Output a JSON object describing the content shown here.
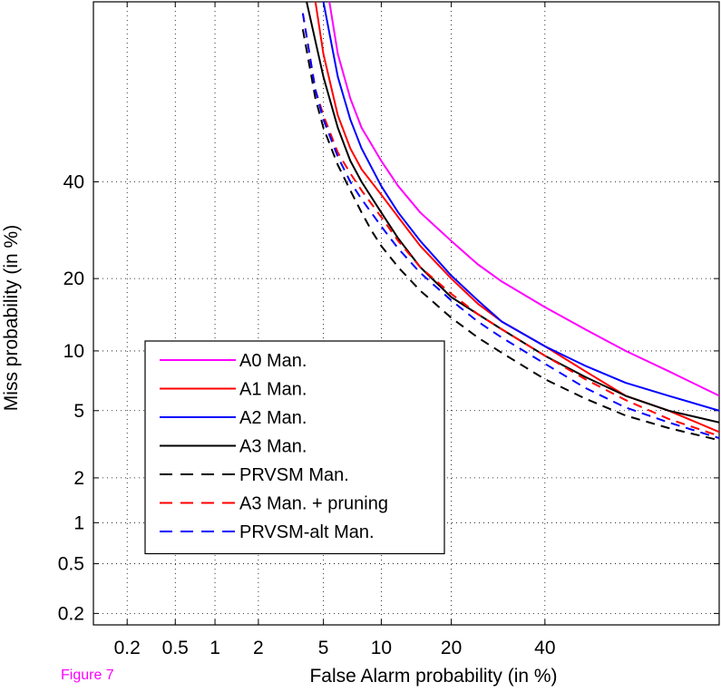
{
  "caption": "Figure 7",
  "chart_data": {
    "type": "line",
    "title": "",
    "xlabel": "False Alarm probability (in %)",
    "ylabel": "Miss probability (in %)",
    "scale": "normal-deviate (DET)",
    "xlim": [
      0.1,
      80
    ],
    "ylim": [
      0.16,
      80
    ],
    "xticks": [
      0.2,
      0.5,
      1,
      2,
      5,
      10,
      20,
      40
    ],
    "xtick_labels": [
      "0.2",
      "0.5",
      "1",
      "2",
      "5",
      "10",
      "20",
      "40"
    ],
    "yticks": [
      0.2,
      0.5,
      1,
      2,
      5,
      10,
      20,
      40
    ],
    "ytick_labels": [
      "0.2",
      "0.5",
      "1",
      "2",
      "5",
      "10",
      "20",
      "40"
    ],
    "grid": true,
    "legend_position": "lower-left",
    "series": [
      {
        "name": "A0 Man.",
        "color": "#ff00ff",
        "dash": "solid",
        "x": [
          5.4,
          6,
          7,
          8,
          10,
          12,
          15,
          20,
          25,
          30,
          40,
          50,
          60,
          70,
          80
        ],
        "y": [
          80,
          70,
          60,
          53,
          45,
          39,
          33,
          27,
          22.5,
          19.5,
          15.5,
          12.5,
          10,
          8,
          6
        ]
      },
      {
        "name": "A1 Man.",
        "color": "#ff0000",
        "dash": "solid",
        "x": [
          4.5,
          5,
          6,
          7,
          8,
          10,
          12,
          15,
          20,
          25,
          30,
          40,
          50,
          60,
          70,
          80
        ],
        "y": [
          80,
          70,
          56,
          48,
          43,
          37,
          32,
          26,
          20,
          16,
          13.5,
          10.5,
          8,
          6,
          5,
          3.8
        ]
      },
      {
        "name": "A2 Man.",
        "color": "#0000ff",
        "dash": "solid",
        "x": [
          5,
          6,
          7,
          8,
          10,
          12,
          15,
          20,
          25,
          30,
          40,
          50,
          60,
          70,
          80
        ],
        "y": [
          80,
          65,
          55,
          48,
          39,
          33,
          27,
          20.5,
          16.5,
          13.5,
          10.5,
          8.5,
          7,
          6,
          5
        ]
      },
      {
        "name": "A3 Man.",
        "color": "#000000",
        "dash": "solid",
        "x": [
          4,
          5,
          6,
          7,
          8,
          10,
          12,
          15,
          20,
          25,
          30,
          40,
          50,
          60,
          70,
          80
        ],
        "y": [
          80,
          65,
          53,
          45,
          40,
          33,
          27.5,
          22,
          17,
          14.5,
          12.5,
          9.5,
          7.5,
          6,
          5,
          4.3
        ]
      },
      {
        "name": "PRVSM Man.",
        "color": "#000000",
        "dash": "dashed",
        "x": [
          3.8,
          4.5,
          5,
          6,
          7,
          8,
          9,
          10,
          12,
          15,
          20,
          25,
          30,
          40,
          50,
          60,
          70,
          80
        ],
        "y": [
          75,
          60,
          53,
          44,
          38,
          33,
          29,
          26,
          22,
          18,
          14,
          11.5,
          9.8,
          7.3,
          5.8,
          4.7,
          4,
          3.4
        ]
      },
      {
        "name": "A3 Man. + pruning",
        "color": "#ff0000",
        "dash": "dashed",
        "x": [
          3.8,
          4.5,
          5,
          6,
          7,
          8,
          10,
          12,
          15,
          20,
          25,
          30,
          40,
          50,
          60,
          70,
          80
        ],
        "y": [
          78,
          62,
          56,
          47,
          42,
          38,
          32,
          27,
          22,
          17.5,
          14.5,
          12.5,
          9.5,
          7.3,
          5.7,
          4.5,
          3.6
        ]
      },
      {
        "name": "PRVSM-alt Man.",
        "color": "#0000ff",
        "dash": "dashed",
        "x": [
          3.8,
          4.5,
          5,
          6,
          7,
          8,
          10,
          12,
          15,
          20,
          25,
          30,
          40,
          50,
          60,
          70,
          80
        ],
        "y": [
          78,
          62,
          55,
          46,
          40,
          36,
          30,
          25.5,
          21,
          16.5,
          13.5,
          11.5,
          8.7,
          6.6,
          5.2,
          4.3,
          3.5
        ]
      }
    ]
  }
}
